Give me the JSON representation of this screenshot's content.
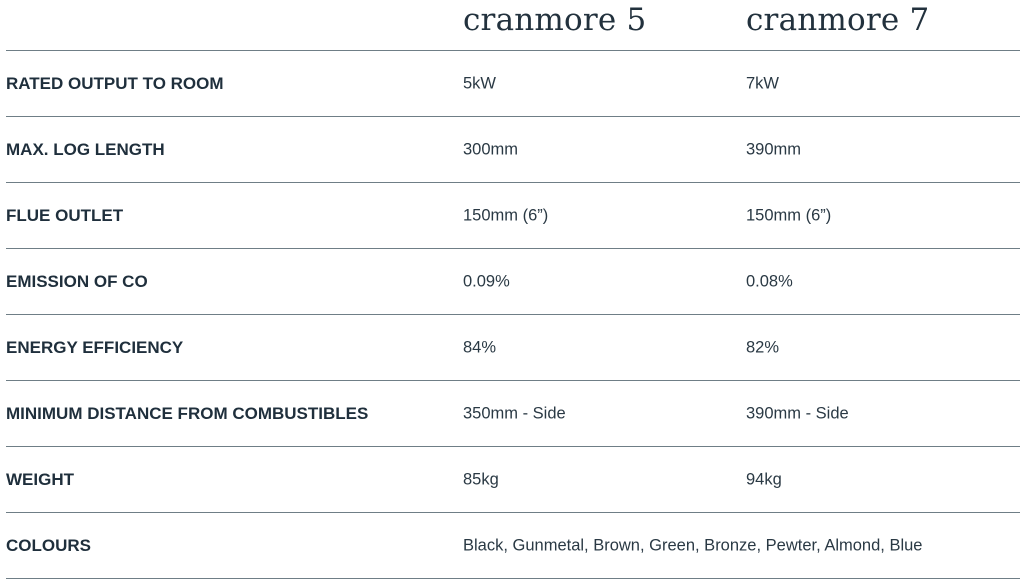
{
  "header": {
    "models": [
      "cranmore 5",
      "cranmore 7"
    ]
  },
  "rows": [
    {
      "label": "RATED OUTPUT TO ROOM",
      "values": [
        "5kW",
        "7kW"
      ]
    },
    {
      "label": "MAX. LOG LENGTH",
      "values": [
        "300mm",
        "390mm"
      ]
    },
    {
      "label": "FLUE OUTLET",
      "values": [
        "150mm (6”)",
        "150mm (6”)"
      ]
    },
    {
      "label": "EMISSION OF CO",
      "values": [
        "0.09%",
        "0.08%"
      ]
    },
    {
      "label": "ENERGY EFFICIENCY",
      "values": [
        "84%",
        "82%"
      ]
    },
    {
      "label": "MINIMUM DISTANCE FROM COMBUSTIBLES",
      "values": [
        "350mm - Side",
        "390mm - Side"
      ]
    },
    {
      "label": "WEIGHT",
      "values": [
        "85kg",
        "94kg"
      ]
    },
    {
      "label": "COLOURS",
      "shared_value": "Black, Gunmetal, Brown, Green, Bronze, Pewter, Almond, Blue"
    }
  ],
  "colors": {
    "text": "#1e2f3b",
    "divider": "#6f7e86",
    "background": "#ffffff"
  }
}
